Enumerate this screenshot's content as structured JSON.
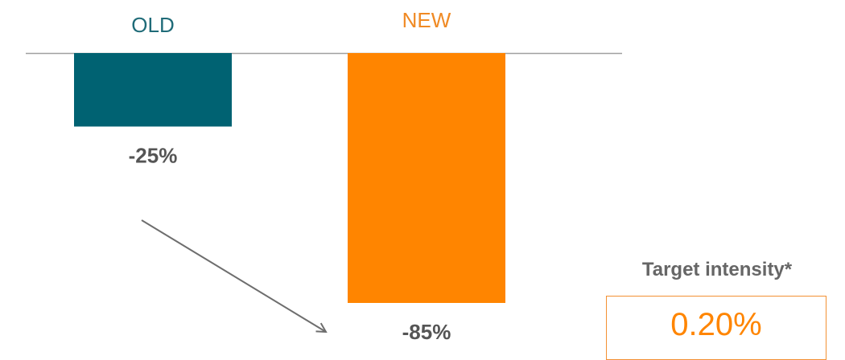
{
  "chart_data": {
    "type": "bar",
    "categories": [
      "OLD",
      "NEW"
    ],
    "values": [
      -25,
      -85
    ],
    "data_labels": [
      "-25%",
      "-85%"
    ],
    "colors": [
      "#006272",
      "#ff8500"
    ],
    "label_colors": [
      "#1f6b78",
      "#f08a24"
    ],
    "ylim": [
      -85,
      0
    ],
    "grid": false,
    "legend": "none"
  },
  "target": {
    "title": "Target intensity*",
    "value": "0.20%"
  }
}
